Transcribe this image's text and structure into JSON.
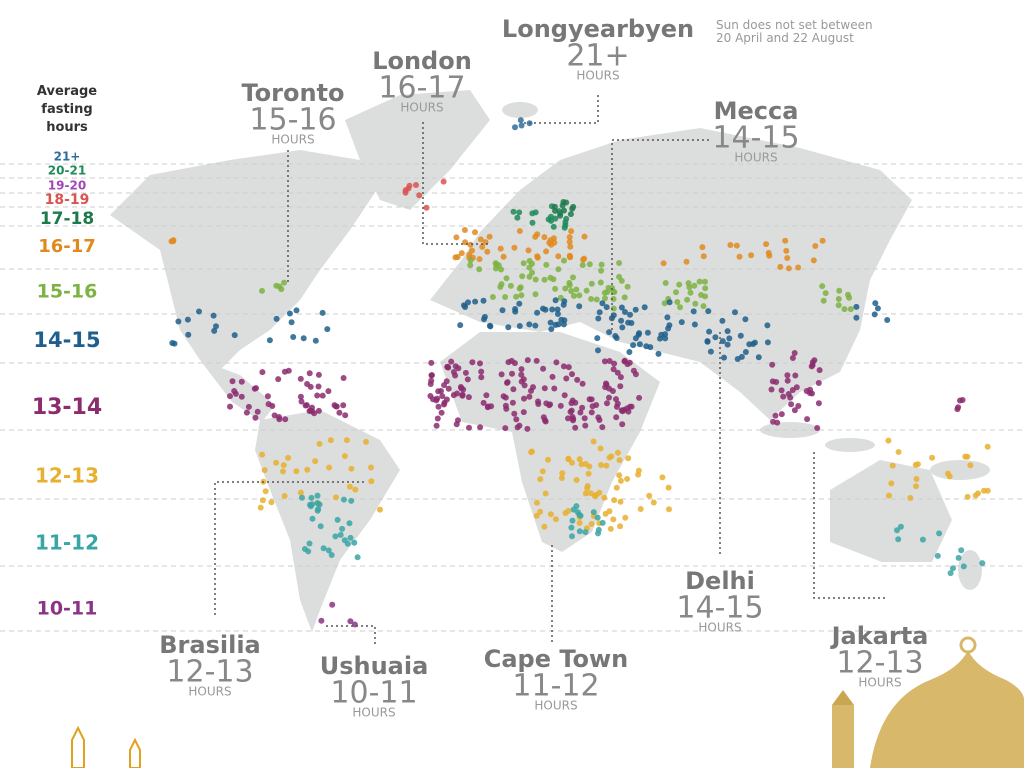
{
  "legend": {
    "title": "Average fasting hours",
    "items": [
      {
        "label": "21+",
        "color": "#2f6e9b"
      },
      {
        "label": "20-21",
        "color": "#1f8a5a"
      },
      {
        "label": "19-20",
        "color": "#a444b8"
      },
      {
        "label": "18-19",
        "color": "#d9534f"
      },
      {
        "label": "17-18",
        "color": "#1d7a4b"
      },
      {
        "label": "16-17",
        "color": "#e08a1e"
      },
      {
        "label": "15-16",
        "color": "#7cb342"
      },
      {
        "label": "14-15",
        "color": "#1f5f8b"
      },
      {
        "label": "13-14",
        "color": "#8b2c6e"
      },
      {
        "label": "12-13",
        "color": "#e8b02e"
      },
      {
        "label": "11-12",
        "color": "#3aa5a5"
      },
      {
        "label": "10-11",
        "color": "#8b3485"
      }
    ]
  },
  "cities": [
    {
      "name": "Longyearbyen",
      "hours": "21+",
      "unit": "HOURS",
      "note": "Sun does not set between 20 April and 22 August"
    },
    {
      "name": "London",
      "hours": "16-17",
      "unit": "HOURS"
    },
    {
      "name": "Toronto",
      "hours": "15-16",
      "unit": "HOURS"
    },
    {
      "name": "Mecca",
      "hours": "14-15",
      "unit": "HOURS"
    },
    {
      "name": "Delhi",
      "hours": "14-15",
      "unit": "HOURS"
    },
    {
      "name": "Jakarta",
      "hours": "12-13",
      "unit": "HOURS"
    },
    {
      "name": "Brasilia",
      "hours": "12-13",
      "unit": "HOURS"
    },
    {
      "name": "Ushuaia",
      "hours": "10-11",
      "unit": "HOURS"
    },
    {
      "name": "Cape Town",
      "hours": "11-12",
      "unit": "HOURS"
    }
  ]
}
